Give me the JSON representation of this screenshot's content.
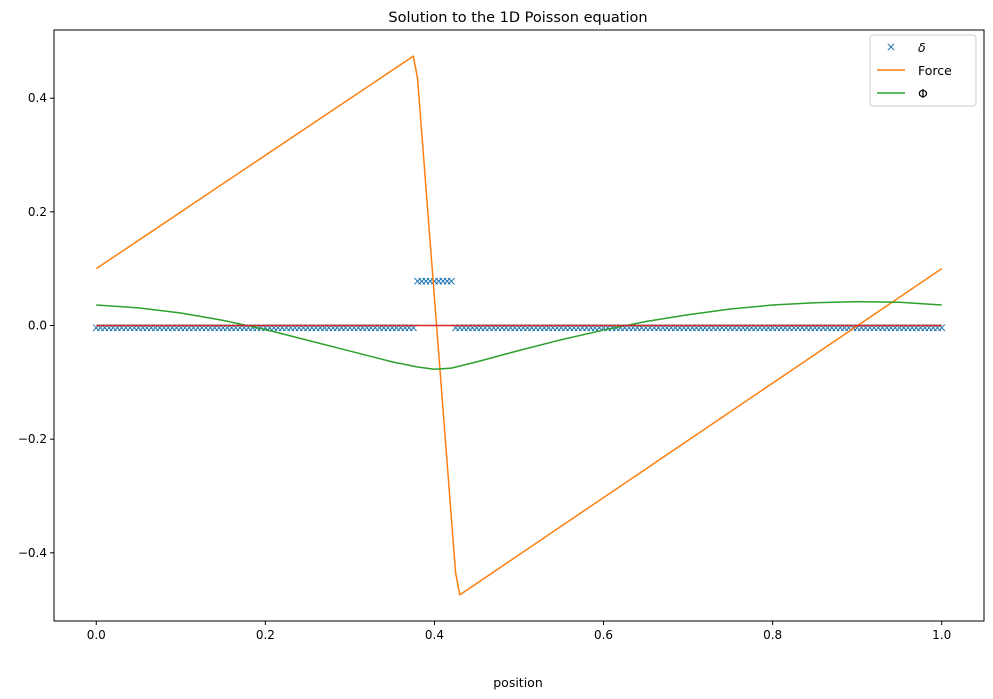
{
  "chart_data": {
    "type": "line",
    "title": "Solution to the 1D Poisson equation",
    "xlabel": "position",
    "ylabel": "",
    "xlim": [
      -0.05,
      1.05
    ],
    "ylim": [
      -0.52,
      0.52
    ],
    "xticks": [
      0.0,
      0.2,
      0.4,
      0.6,
      0.8,
      1.0
    ],
    "xtick_labels": [
      "0.0",
      "0.2",
      "0.4",
      "0.6",
      "0.8",
      "1.0"
    ],
    "yticks": [
      -0.4,
      -0.2,
      0.0,
      0.2,
      0.4
    ],
    "ytick_labels": [
      "−0.4",
      "−0.2",
      "0.0",
      "0.2",
      "0.4"
    ],
    "grid": false,
    "legend_position": "top-right",
    "series": [
      {
        "name": "δ",
        "kind": "markers",
        "marker": "x",
        "color": "#1f77b4",
        "segments": [
          {
            "x_start": 0.0,
            "x_end": 0.375,
            "y": -0.004,
            "n": 76
          },
          {
            "x_start": 0.38,
            "x_end": 0.42,
            "y": 0.078,
            "n": 9
          },
          {
            "x_start": 0.425,
            "x_end": 1.0,
            "y": -0.004,
            "n": 116
          }
        ]
      },
      {
        "name": "Force",
        "kind": "line",
        "color": "#ff7f0e",
        "x": [
          0.0,
          0.375,
          0.38,
          0.425,
          0.43,
          1.0
        ],
        "y": [
          0.1,
          0.474,
          0.435,
          -0.435,
          -0.474,
          0.1
        ]
      },
      {
        "name": "Φ",
        "kind": "line",
        "color": "#2ca02c",
        "x": [
          0.0,
          0.05,
          0.1,
          0.15,
          0.2,
          0.25,
          0.3,
          0.35,
          0.38,
          0.4,
          0.42,
          0.45,
          0.5,
          0.55,
          0.6,
          0.65,
          0.7,
          0.75,
          0.8,
          0.85,
          0.9,
          0.95,
          1.0
        ],
        "y": [
          0.036,
          0.031,
          0.022,
          0.009,
          -0.007,
          -0.026,
          -0.045,
          -0.064,
          -0.073,
          -0.077,
          -0.075,
          -0.064,
          -0.044,
          -0.025,
          -0.008,
          0.007,
          0.019,
          0.029,
          0.036,
          0.04,
          0.042,
          0.041,
          0.036
        ]
      },
      {
        "kind": "line",
        "color": "#d62728",
        "x": [
          0.0,
          1.0
        ],
        "y": [
          0.0,
          0.0
        ]
      }
    ]
  }
}
